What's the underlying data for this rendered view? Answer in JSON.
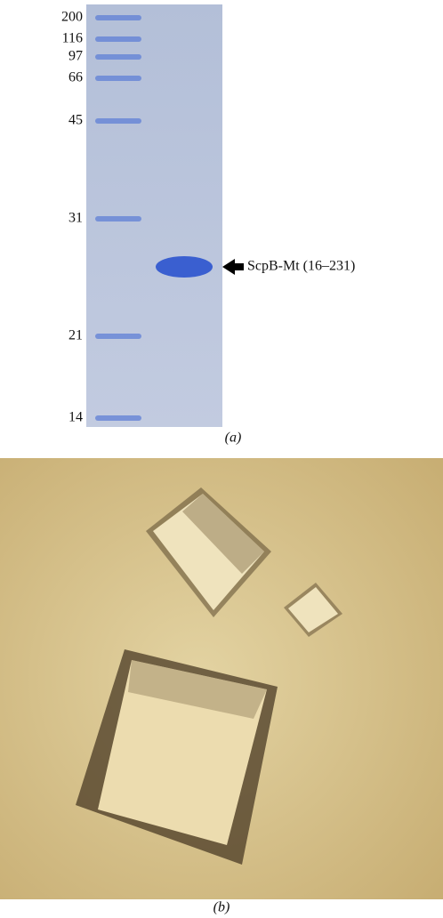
{
  "panel_a": {
    "marker_labels": [
      "200",
      "116",
      "97",
      "66",
      "45",
      "31",
      "21",
      "14"
    ],
    "band_label": "ScpB-Mt (16–231)",
    "caption": "(a)"
  },
  "panel_b": {
    "caption": "(b)"
  }
}
